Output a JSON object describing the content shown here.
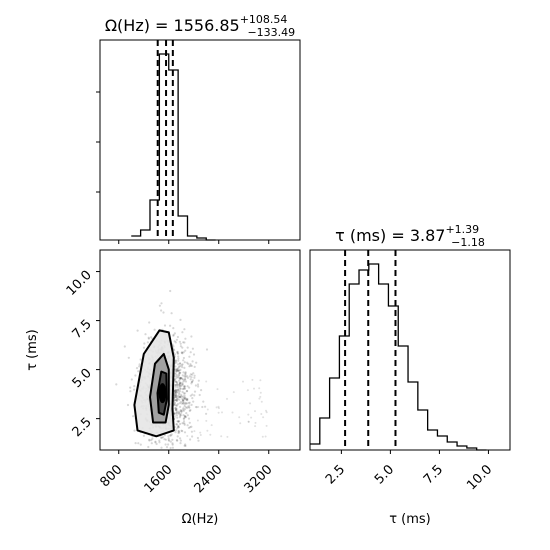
{
  "chart_data": [
    {
      "type": "bar",
      "panel": "omega-histogram",
      "title_main": "Ω(Hz) = 1556.85",
      "title_sup": "+108.54",
      "title_sub": "−133.49",
      "xlim": [
        500,
        3700
      ],
      "ylim": [
        0,
        1.0
      ],
      "bin_width": 150,
      "bin_edges_start": 1000,
      "counts": [
        0.02,
        0.05,
        0.2,
        0.93,
        0.85,
        0.12,
        0.02,
        0.01,
        0.0
      ],
      "quantiles": [
        1423.36,
        1556.85,
        1665.39
      ]
    },
    {
      "type": "bar",
      "panel": "tau-histogram",
      "title_main": "τ (ms) = 3.87",
      "title_sup": "+1.39",
      "title_sub": "−1.18",
      "xlabel": "τ (ms)",
      "xlim": [
        0.9,
        11.1
      ],
      "ylim": [
        0,
        1.0
      ],
      "xticks": [
        "2.5",
        "5.0",
        "7.5",
        "10.0"
      ],
      "xtick_values": [
        2.5,
        5.0,
        7.5,
        10.0
      ],
      "bin_width": 0.5,
      "bin_edges_start": 0.9,
      "counts": [
        0.03,
        0.16,
        0.36,
        0.57,
        0.83,
        0.9,
        0.93,
        0.83,
        0.72,
        0.52,
        0.34,
        0.2,
        0.1,
        0.07,
        0.04,
        0.02,
        0.01,
        0.0
      ],
      "quantiles": [
        2.69,
        3.87,
        5.26
      ]
    },
    {
      "type": "heatmap",
      "panel": "joint-density",
      "xlabel": "Ω(Hz)",
      "ylabel": "τ (ms)",
      "xlim": [
        500,
        3700
      ],
      "ylim": [
        0.9,
        11.1
      ],
      "xticks": [
        "800",
        "1600",
        "2400",
        "3200"
      ],
      "xtick_values": [
        800,
        1600,
        2400,
        3200
      ],
      "yticks": [
        "2.5",
        "5.0",
        "7.5",
        "10.0"
      ],
      "ytick_values": [
        2.5,
        5.0,
        7.5,
        10.0
      ],
      "center": [
        1556.85,
        3.87
      ],
      "contour_levels": [
        [
          [
            1100,
            1.9
          ],
          [
            1050,
            3.2
          ],
          [
            1200,
            5.8
          ],
          [
            1450,
            7.0
          ],
          [
            1600,
            6.9
          ],
          [
            1680,
            5.6
          ],
          [
            1660,
            3.0
          ],
          [
            1680,
            1.9
          ],
          [
            1400,
            1.6
          ]
        ],
        [
          [
            1350,
            2.3
          ],
          [
            1300,
            3.6
          ],
          [
            1380,
            5.3
          ],
          [
            1520,
            5.8
          ],
          [
            1600,
            5.0
          ],
          [
            1600,
            3.2
          ],
          [
            1550,
            2.3
          ]
        ],
        [
          [
            1440,
            2.8
          ],
          [
            1420,
            3.8
          ],
          [
            1480,
            4.9
          ],
          [
            1560,
            4.8
          ],
          [
            1570,
            3.5
          ],
          [
            1520,
            2.7
          ]
        ]
      ]
    }
  ]
}
